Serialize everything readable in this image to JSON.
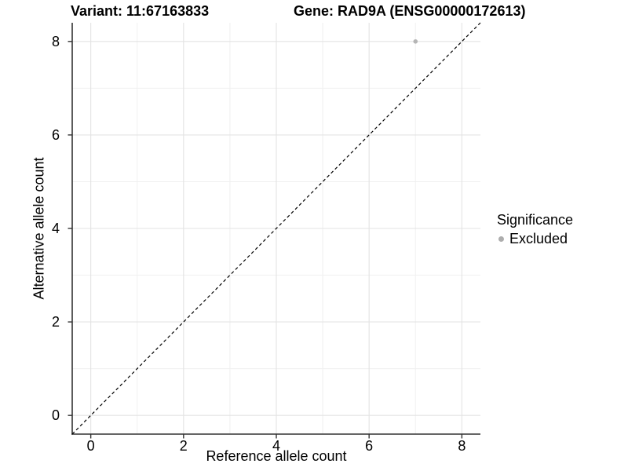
{
  "titles": {
    "variant": "Variant: 11:67163833",
    "gene": "Gene: RAD9A (ENSG00000172613)"
  },
  "axes": {
    "x": {
      "label": "Reference allele count",
      "tick_values": [
        0,
        2,
        4,
        6,
        8
      ]
    },
    "y": {
      "label": "Alternative allele count",
      "tick_values": [
        0,
        2,
        4,
        6,
        8
      ]
    }
  },
  "legend": {
    "title": "Significance",
    "items": [
      {
        "label": "Excluded",
        "color": "#adadad"
      }
    ]
  },
  "colors": {
    "background": "#ffffff",
    "grid_major": "#e3e3e3",
    "grid_minor": "#f0f0f0",
    "axis_line": "#333333",
    "tick_mark": "#333333",
    "reference_line": "#000000",
    "point": "#b5b5b5",
    "text": "#000000"
  },
  "chart_data": {
    "type": "scatter",
    "title": "Variant: 11:67163833 | Gene: RAD9A (ENSG00000172613)",
    "xlabel": "Reference allele count",
    "ylabel": "Alternative allele count",
    "xlim": [
      -0.4,
      8.4
    ],
    "ylim": [
      -0.4,
      8.4
    ],
    "x_ticks": [
      0,
      2,
      4,
      6,
      8
    ],
    "y_ticks": [
      0,
      2,
      4,
      6,
      8
    ],
    "grid": {
      "major": [
        0,
        2,
        4,
        6,
        8
      ],
      "minor": [
        1,
        3,
        5,
        7
      ]
    },
    "series": [
      {
        "name": "Excluded",
        "color": "#b5b5b5",
        "points": [
          {
            "x": 7,
            "y": 8
          }
        ]
      }
    ],
    "reference_line": {
      "slope": 1,
      "intercept": 0,
      "style": "dashed"
    },
    "legend_position": "right",
    "legend_title": "Significance"
  }
}
